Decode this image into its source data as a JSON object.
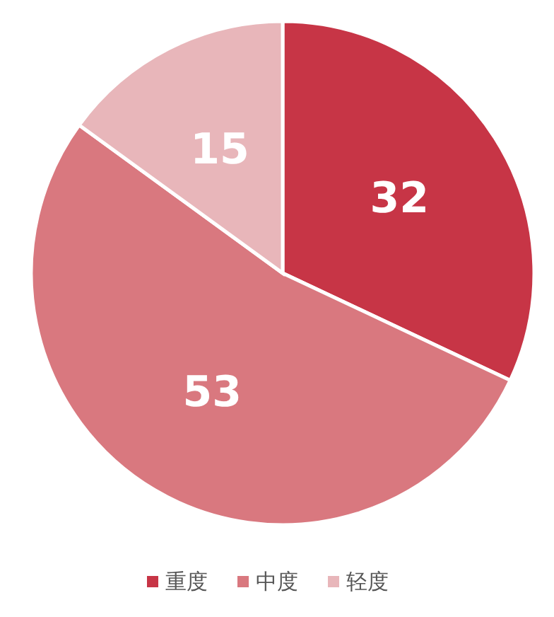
{
  "chart_data": {
    "type": "pie",
    "categories": [
      "重度",
      "中度",
      "轻度"
    ],
    "values": [
      32,
      53,
      15
    ],
    "colors": [
      "#c73546",
      "#d9787f",
      "#e8b6ba"
    ],
    "data_labels": true,
    "legend": "bottom"
  }
}
